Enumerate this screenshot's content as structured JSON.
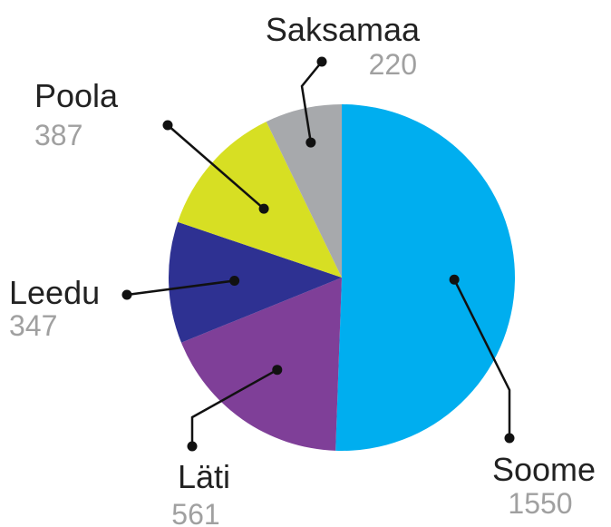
{
  "chart_data": {
    "type": "pie",
    "categories": [
      "Soome",
      "Läti",
      "Leedu",
      "Poola",
      "Saksamaa"
    ],
    "values": [
      1550,
      561,
      347,
      387,
      220
    ],
    "colors": [
      "#00aeef",
      "#7f3f98",
      "#2e3192",
      "#d7df23",
      "#a7a9ac"
    ]
  }
}
